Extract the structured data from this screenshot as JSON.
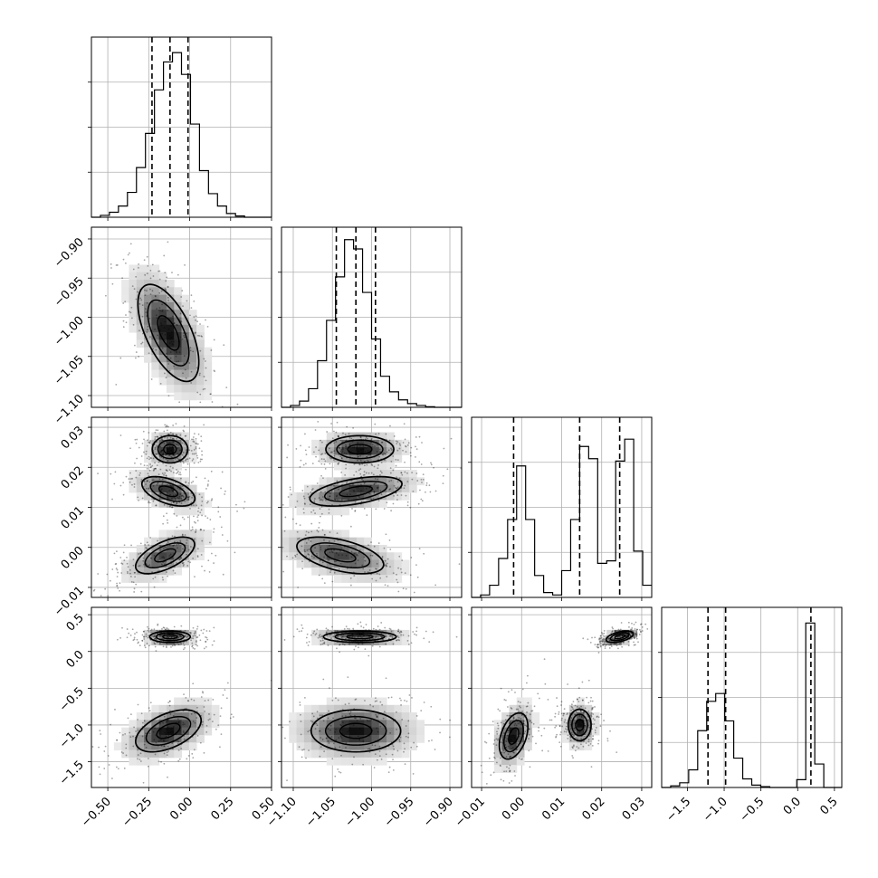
{
  "chart_data": {
    "type": "corner",
    "grid": true,
    "parameters": [
      {
        "xlim": [
          -0.6,
          0.5
        ],
        "xticks": [
          -0.5,
          -0.25,
          0.0,
          0.25,
          0.5
        ],
        "xtick_labels": [
          "−0.50",
          "−0.25",
          "0.00",
          "0.25",
          "0.50"
        ],
        "quantiles": [
          -0.23,
          -0.12,
          -0.01
        ],
        "hist_edges": [
          -0.6,
          -0.545,
          -0.49,
          -0.435,
          -0.38,
          -0.325,
          -0.27,
          -0.215,
          -0.16,
          -0.105,
          -0.05,
          0.005,
          0.06,
          0.115,
          0.17,
          0.225,
          0.28,
          0.335,
          0.39,
          0.445,
          0.5
        ],
        "hist_counts": [
          0,
          3,
          8,
          18,
          40,
          80,
          135,
          205,
          250,
          265,
          230,
          150,
          75,
          38,
          18,
          6,
          2,
          0,
          0,
          0
        ],
        "hist_ylim": [
          0,
          290
        ]
      },
      {
        "xlim": [
          -1.115,
          -0.885
        ],
        "xticks": [
          -1.1,
          -1.05,
          -1.0,
          -0.95,
          -0.9
        ],
        "xtick_labels": [
          "−1.10",
          "−1.05",
          "−1.00",
          "−0.95",
          "−0.90"
        ],
        "yticks": [
          -1.1,
          -1.05,
          -1.0,
          -0.95,
          -0.9
        ],
        "ytick_labels": [
          "−1.10",
          "−1.05",
          "−1.00",
          "−0.95",
          "−0.90"
        ],
        "quantiles": [
          -1.045,
          -1.02,
          -0.995
        ],
        "hist_edges": [
          -1.115,
          -1.1035,
          -1.092,
          -1.0805,
          -1.069,
          -1.0575,
          -1.046,
          -1.0345,
          -1.023,
          -1.0115,
          -1.0,
          -0.9885,
          -0.977,
          -0.9655,
          -0.954,
          -0.9425,
          -0.931,
          -0.9195,
          -0.908,
          -0.8965,
          -0.885
        ],
        "hist_counts": [
          0,
          3,
          10,
          30,
          75,
          140,
          210,
          270,
          255,
          185,
          110,
          50,
          25,
          12,
          6,
          3,
          1,
          0,
          0,
          0
        ],
        "hist_ylim": [
          0,
          290
        ]
      },
      {
        "xlim": [
          -0.0125,
          0.0325
        ],
        "xticks": [
          -0.01,
          0.0,
          0.01,
          0.02,
          0.03
        ],
        "xtick_labels": [
          "−0.01",
          "0.00",
          "0.01",
          "0.02",
          "0.03"
        ],
        "yticks": [
          -0.01,
          0.0,
          0.01,
          0.02,
          0.03
        ],
        "ytick_labels": [
          "−0.01",
          "0.00",
          "0.01",
          "0.02",
          "0.03"
        ],
        "quantiles": [
          -0.002,
          0.0145,
          0.0245
        ],
        "hist_edges": [
          -0.0125,
          -0.01025,
          -0.008,
          -0.00575,
          -0.0035,
          -0.00125,
          0.001,
          0.00325,
          0.0055,
          0.00775,
          0.01,
          0.01225,
          0.0145,
          0.01675,
          0.019,
          0.02125,
          0.0235,
          0.02575,
          0.028,
          0.03025,
          0.0325
        ],
        "hist_counts": [
          0,
          5,
          25,
          80,
          160,
          270,
          160,
          45,
          10,
          5,
          55,
          160,
          310,
          285,
          70,
          75,
          280,
          325,
          95,
          25
        ],
        "hist_ylim": [
          0,
          370
        ]
      },
      {
        "xlim": [
          -1.85,
          0.6
        ],
        "xticks": [
          -1.5,
          -1.0,
          -0.5,
          0.0,
          0.5
        ],
        "xtick_labels": [
          "−1.5",
          "−1.0",
          "−0.5",
          "0.0",
          "0.5"
        ],
        "yticks": [
          -1.5,
          -1.0,
          -0.5,
          0.0,
          0.5
        ],
        "ytick_labels": [
          "−1.5",
          "−1.0",
          "−0.5",
          "0.0",
          "0.5"
        ],
        "quantiles": [
          -1.22,
          -0.98,
          0.18
        ],
        "hist_edges": [
          -1.85,
          -1.7275,
          -1.605,
          -1.4825,
          -1.36,
          -1.2375,
          -1.115,
          -0.9925,
          -0.87,
          -0.7475,
          -0.625,
          -0.5025,
          -0.38,
          -0.2575,
          -0.135,
          -0.0125,
          0.11,
          0.2325,
          0.355,
          0.4775,
          0.6
        ],
        "hist_counts": [
          0,
          4,
          12,
          45,
          145,
          220,
          240,
          170,
          75,
          22,
          6,
          2,
          0,
          0,
          0,
          20,
          420,
          60,
          0,
          0
        ],
        "hist_ylim": [
          0,
          460
        ]
      }
    ],
    "blobs": {
      "1_0": [
        {
          "cx": -0.13,
          "cy": -1.02,
          "sx": 0.12,
          "sy": 0.04,
          "rho": -0.6,
          "w": 1.0
        }
      ],
      "2_0": [
        {
          "cx": -0.12,
          "cy": 0.0245,
          "sx": 0.07,
          "sy": 0.0022,
          "rho": 0.0,
          "w": 1.0
        },
        {
          "cx": -0.13,
          "cy": 0.014,
          "sx": 0.11,
          "sy": 0.0025,
          "rho": -0.5,
          "w": 0.9
        },
        {
          "cx": -0.15,
          "cy": -0.002,
          "sx": 0.13,
          "sy": 0.0033,
          "rho": 0.6,
          "w": 0.8
        }
      ],
      "2_1": [
        {
          "cx": -1.015,
          "cy": 0.0245,
          "sx": 0.028,
          "sy": 0.0022,
          "rho": 0.0,
          "w": 1.0
        },
        {
          "cx": -1.02,
          "cy": 0.014,
          "sx": 0.04,
          "sy": 0.0025,
          "rho": 0.5,
          "w": 0.9
        },
        {
          "cx": -1.04,
          "cy": -0.002,
          "sx": 0.04,
          "sy": 0.0033,
          "rho": -0.5,
          "w": 0.8
        }
      ],
      "3_0": [
        {
          "cx": -0.12,
          "cy": 0.2,
          "sx": 0.08,
          "sy": 0.05,
          "rho": 0.0,
          "w": 1.0
        },
        {
          "cx": -0.13,
          "cy": -1.08,
          "sx": 0.14,
          "sy": 0.2,
          "rho": 0.5,
          "w": 0.85
        }
      ],
      "3_1": [
        {
          "cx": -1.015,
          "cy": 0.2,
          "sx": 0.03,
          "sy": 0.05,
          "rho": 0.0,
          "w": 1.0
        },
        {
          "cx": -1.02,
          "cy": -1.08,
          "sx": 0.04,
          "sy": 0.2,
          "rho": 0.0,
          "w": 0.85
        }
      ],
      "3_2": [
        {
          "cx": 0.0245,
          "cy": 0.2,
          "sx": 0.0022,
          "sy": 0.05,
          "rho": 0.5,
          "w": 1.0
        },
        {
          "cx": -0.002,
          "cy": -1.15,
          "sx": 0.0025,
          "sy": 0.22,
          "rho": 0.4,
          "w": 0.85
        },
        {
          "cx": 0.0145,
          "cy": -1.0,
          "sx": 0.002,
          "sy": 0.15,
          "rho": 0.0,
          "w": 0.85
        }
      ]
    }
  }
}
